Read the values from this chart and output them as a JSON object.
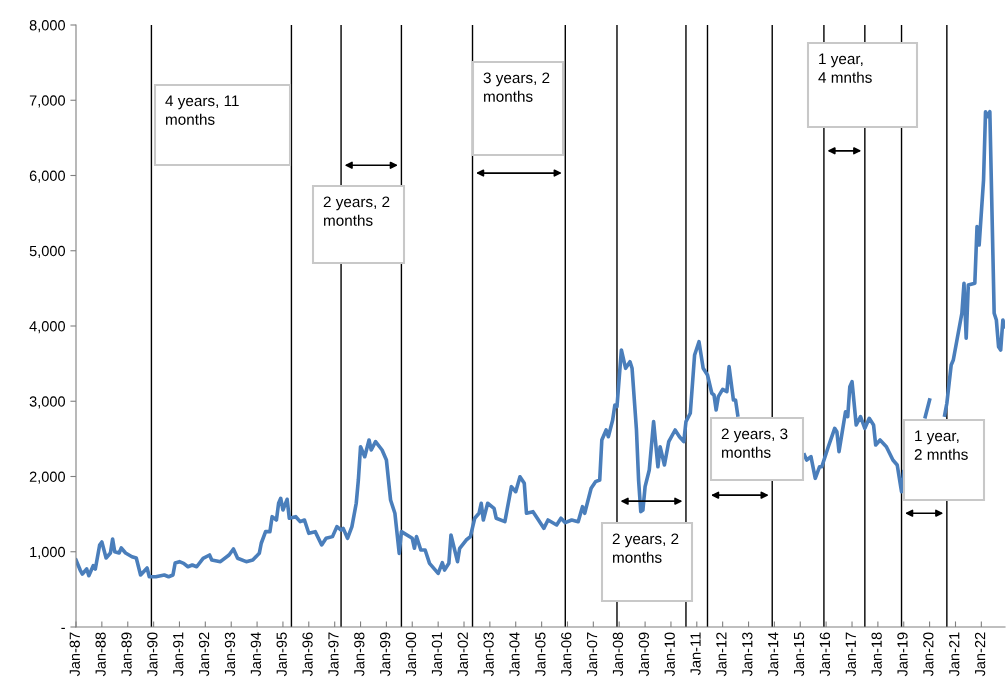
{
  "chart_data": {
    "type": "line",
    "x": [
      "1987-01",
      "1987-03",
      "1987-04",
      "1987-06",
      "1987-07",
      "1987-09",
      "1987-10",
      "1987-12",
      "1988-01",
      "1988-03",
      "1988-05",
      "1988-06",
      "1988-07",
      "1988-09",
      "1988-10",
      "1988-12",
      "1989-03",
      "1989-05",
      "1989-07",
      "1989-10",
      "1989-11",
      "1990-02",
      "1990-06",
      "1990-08",
      "1990-10",
      "1990-11",
      "1991-01",
      "1991-03",
      "1991-05",
      "1991-07",
      "1991-09",
      "1991-12",
      "1992-03",
      "1992-04",
      "1992-08",
      "1992-12",
      "1993-02",
      "1993-04",
      "1993-08",
      "1993-11",
      "1994-02",
      "1994-03",
      "1994-05",
      "1994-07",
      "1994-08",
      "1994-10",
      "1994-11",
      "1994-12",
      "1995-01",
      "1995-03",
      "1995-04",
      "1995-07",
      "1995-09",
      "1995-11",
      "1996-01",
      "1996-04",
      "1996-07",
      "1996-09",
      "1996-12",
      "1997-02",
      "1997-04",
      "1997-05",
      "1997-07",
      "1997-09",
      "1997-11",
      "1997-12",
      "1998-01",
      "1998-03",
      "1998-05",
      "1998-06",
      "1998-08",
      "1998-11",
      "1999-01",
      "1999-03",
      "1999-05",
      "1999-07",
      "1999-08",
      "2000-01",
      "2000-02",
      "2000-03",
      "2000-05",
      "2000-07",
      "2000-09",
      "2001-01",
      "2001-03",
      "2001-04",
      "2001-06",
      "2001-07",
      "2001-10",
      "2001-11",
      "2002-02",
      "2002-04",
      "2002-06",
      "2002-08",
      "2002-09",
      "2002-10",
      "2002-12",
      "2003-03",
      "2003-04",
      "2003-08",
      "2003-11",
      "2004-01",
      "2004-03",
      "2004-05",
      "2004-06",
      "2004-09",
      "2004-11",
      "2005-02",
      "2005-04",
      "2005-08",
      "2005-10",
      "2005-12",
      "2006-03",
      "2006-06",
      "2006-08",
      "2006-09",
      "2006-12",
      "2007-02",
      "2007-04",
      "2007-05",
      "2007-07",
      "2007-08",
      "2007-10",
      "2007-11",
      "2007-12",
      "2008-02",
      "2008-04",
      "2008-06",
      "2008-07",
      "2008-09",
      "2008-10",
      "2008-11",
      "2008-12",
      "2009-01",
      "2009-03",
      "2009-05",
      "2009-07",
      "2009-08",
      "2009-10",
      "2009-12",
      "2010-03",
      "2010-05",
      "2010-07",
      "2010-08",
      "2010-10",
      "2010-12",
      "2011-02",
      "2011-04",
      "2011-06",
      "2011-08",
      "2011-09",
      "2011-10",
      "2011-11",
      "2012-01",
      "2012-03",
      "2012-04",
      "2012-06",
      "2012-07",
      "2012-08",
      "2013-02",
      "2014-02",
      "2014-08",
      "2015-03",
      "2015-04",
      "2015-06",
      "2015-08",
      "2015-10",
      "2015-11",
      "2016-02",
      "2016-05",
      "2016-06",
      "2016-07",
      "2016-10",
      "2016-11",
      "2016-12",
      "2017-01",
      "2017-03",
      "2017-05",
      "2017-07",
      "2017-09",
      "2017-11",
      "2017-12",
      "2018-02",
      "2018-05",
      "2018-08",
      "2018-10",
      "2018-12",
      "2019-01",
      "2019-05",
      "2019-11",
      "2020-01",
      "2020-03",
      "2020-08",
      "2020-09",
      "2020-11",
      "2020-12",
      "2021-04",
      "2021-05",
      "2021-06",
      "2021-07",
      "2021-10",
      "2021-11",
      "2021-12",
      "2022-02",
      "2022-03",
      "2022-04",
      "2022-05",
      "2022-07",
      "2022-08",
      "2022-09",
      "2022-10",
      "2022-11",
      "2022-12"
    ],
    "series": [
      {
        "color": "#4a7ebb",
        "values": [
          890,
          757,
          704,
          771,
          682,
          815,
          771,
          1090,
          1130,
          917,
          983,
          1170,
          1000,
          983,
          1050,
          983,
          934,
          917,
          691,
          784,
          668,
          668,
          691,
          668,
          691,
          850,
          868,
          846,
          801,
          824,
          801,
          913,
          957,
          890,
          868,
          957,
          1037,
          913,
          868,
          890,
          979,
          1113,
          1267,
          1267,
          1466,
          1422,
          1644,
          1710,
          1555,
          1697,
          1445,
          1466,
          1400,
          1422,
          1245,
          1267,
          1090,
          1179,
          1201,
          1334,
          1289,
          1311,
          1179,
          1334,
          1644,
          1953,
          2396,
          2263,
          2485,
          2352,
          2463,
          2352,
          2219,
          1688,
          1511,
          979,
          1267,
          1179,
          1046,
          1201,
          1023,
          1023,
          846,
          713,
          855,
          757,
          846,
          1223,
          868,
          1046,
          1156,
          1201,
          1445,
          1511,
          1644,
          1422,
          1644,
          1577,
          1445,
          1400,
          1865,
          1798,
          1997,
          1910,
          1511,
          1533,
          1445,
          1311,
          1422,
          1356,
          1445,
          1387,
          1422,
          1400,
          1599,
          1511,
          1843,
          1931,
          1953,
          2485,
          2618,
          2529,
          2751,
          2950,
          2928,
          3681,
          3438,
          3526,
          3438,
          2618,
          1953,
          1533,
          1555,
          1865,
          2086,
          2729,
          2130,
          2396,
          2153,
          2463,
          2618,
          2529,
          2463,
          2729,
          2840,
          3615,
          3791,
          3438,
          3349,
          3106,
          3083,
          2884,
          3061,
          3158,
          3127,
          3460,
          3017,
          3017,
          2817,
          null,
          null,
          null,
          2286,
          2219,
          2263,
          1976,
          2130,
          2130,
          2396,
          2640,
          2596,
          2330,
          2861,
          2795,
          3194,
          3260,
          2684,
          2795,
          2640,
          2773,
          2684,
          2419,
          2485,
          2396,
          2219,
          2153,
          1798,
          2064,
          null,
          2795,
          3017,
          null,
          2817,
          2973,
          3482,
          3548,
          4169,
          4568,
          3837,
          4545,
          4568,
          5320,
          5076,
          5940,
          6848,
          6782,
          6848,
          4169,
          4080,
          3725,
          3681,
          4080,
          3991
        ]
      }
    ],
    "xlim": [
      "1987-01",
      "2022-12"
    ],
    "xticks": [
      {
        "value": "1987-01",
        "label": "Jan-87"
      },
      {
        "value": "1988-01",
        "label": "Jan-88"
      },
      {
        "value": "1989-01",
        "label": "Jan-89"
      },
      {
        "value": "1990-01",
        "label": "Jan-90"
      },
      {
        "value": "1991-01",
        "label": "Jan-91"
      },
      {
        "value": "1992-01",
        "label": "Jan-92"
      },
      {
        "value": "1993-01",
        "label": "Jan-93"
      },
      {
        "value": "1994-01",
        "label": "Jan-94"
      },
      {
        "value": "1995-01",
        "label": "Jan-95"
      },
      {
        "value": "1996-01",
        "label": "Jan-96"
      },
      {
        "value": "1997-01",
        "label": "Jan-97"
      },
      {
        "value": "1998-01",
        "label": "Jan-98"
      },
      {
        "value": "1999-01",
        "label": "Jan-99"
      },
      {
        "value": "2000-01",
        "label": "Jan-00"
      },
      {
        "value": "2001-01",
        "label": "Jan-01"
      },
      {
        "value": "2002-01",
        "label": "Jan-02"
      },
      {
        "value": "2003-01",
        "label": "Jan-03"
      },
      {
        "value": "2004-01",
        "label": "Jan-04"
      },
      {
        "value": "2005-01",
        "label": "Jan-05"
      },
      {
        "value": "2006-01",
        "label": "Jan-06"
      },
      {
        "value": "2007-01",
        "label": "Jan-07"
      },
      {
        "value": "2008-01",
        "label": "Jan-08"
      },
      {
        "value": "2009-01",
        "label": "Jan-09"
      },
      {
        "value": "2010-01",
        "label": "Jan-10"
      },
      {
        "value": "2011-01",
        "label": "Jan-11"
      },
      {
        "value": "2012-01",
        "label": "Jan-12"
      },
      {
        "value": "2013-01",
        "label": "Jan-13"
      },
      {
        "value": "2014-01",
        "label": "Jan-14"
      },
      {
        "value": "2015-01",
        "label": "Jan-15"
      },
      {
        "value": "2016-01",
        "label": "Jan-16"
      },
      {
        "value": "2017-01",
        "label": "Jan-17"
      },
      {
        "value": "2018-01",
        "label": "Jan-18"
      },
      {
        "value": "2019-01",
        "label": "Jan-19"
      },
      {
        "value": "2020-01",
        "label": "Jan-20"
      },
      {
        "value": "2021-01",
        "label": "Jan-21"
      },
      {
        "value": "2022-01",
        "label": "Jan-22"
      }
    ],
    "ylim": [
      0,
      8000
    ],
    "yticks": [
      {
        "value": 0,
        "label": "-"
      },
      {
        "value": 1000,
        "label": "1,000"
      },
      {
        "value": 2000,
        "label": "2,000"
      },
      {
        "value": 3000,
        "label": "3,000"
      },
      {
        "value": 4000,
        "label": "4,000"
      },
      {
        "value": 5000,
        "label": "5,000"
      },
      {
        "value": 6000,
        "label": "6,000"
      },
      {
        "value": 7000,
        "label": "7,000"
      },
      {
        "value": 8000,
        "label": "8,000"
      }
    ],
    "ref_lines": [
      {
        "axis": "x",
        "value": "1989-12",
        "color": "#000000"
      },
      {
        "axis": "x",
        "value": "1995-05",
        "color": "#000000"
      },
      {
        "axis": "x",
        "value": "1997-04",
        "color": "#000000"
      },
      {
        "axis": "x",
        "value": "1999-08",
        "color": "#000000"
      },
      {
        "axis": "x",
        "value": "2002-05",
        "color": "#000000"
      },
      {
        "axis": "x",
        "value": "2005-12",
        "color": "#000000"
      },
      {
        "axis": "x",
        "value": "2007-12",
        "color": "#000000"
      },
      {
        "axis": "x",
        "value": "2010-08",
        "color": "#000000"
      },
      {
        "axis": "x",
        "value": "2011-06",
        "color": "#000000"
      },
      {
        "axis": "x",
        "value": "2013-12",
        "color": "#000000"
      },
      {
        "axis": "x",
        "value": "2015-12",
        "color": "#000000"
      },
      {
        "axis": "x",
        "value": "2017-07",
        "color": "#000000"
      },
      {
        "axis": "x",
        "value": "2018-12",
        "color": "#000000"
      },
      {
        "axis": "x",
        "value": "2020-09",
        "color": "#000000"
      }
    ],
    "annotations": [
      "4 years, 11\nmonths",
      "2 years, 2\nmonths",
      "3 years, 2\nmonths",
      "2 years, 2\nmonths",
      "2 years, 3\nmonths",
      "1 year,\n4 mnths",
      "1 year,\n2 mnths"
    ],
    "grid": false,
    "marker": "none",
    "line_style": "solid"
  }
}
